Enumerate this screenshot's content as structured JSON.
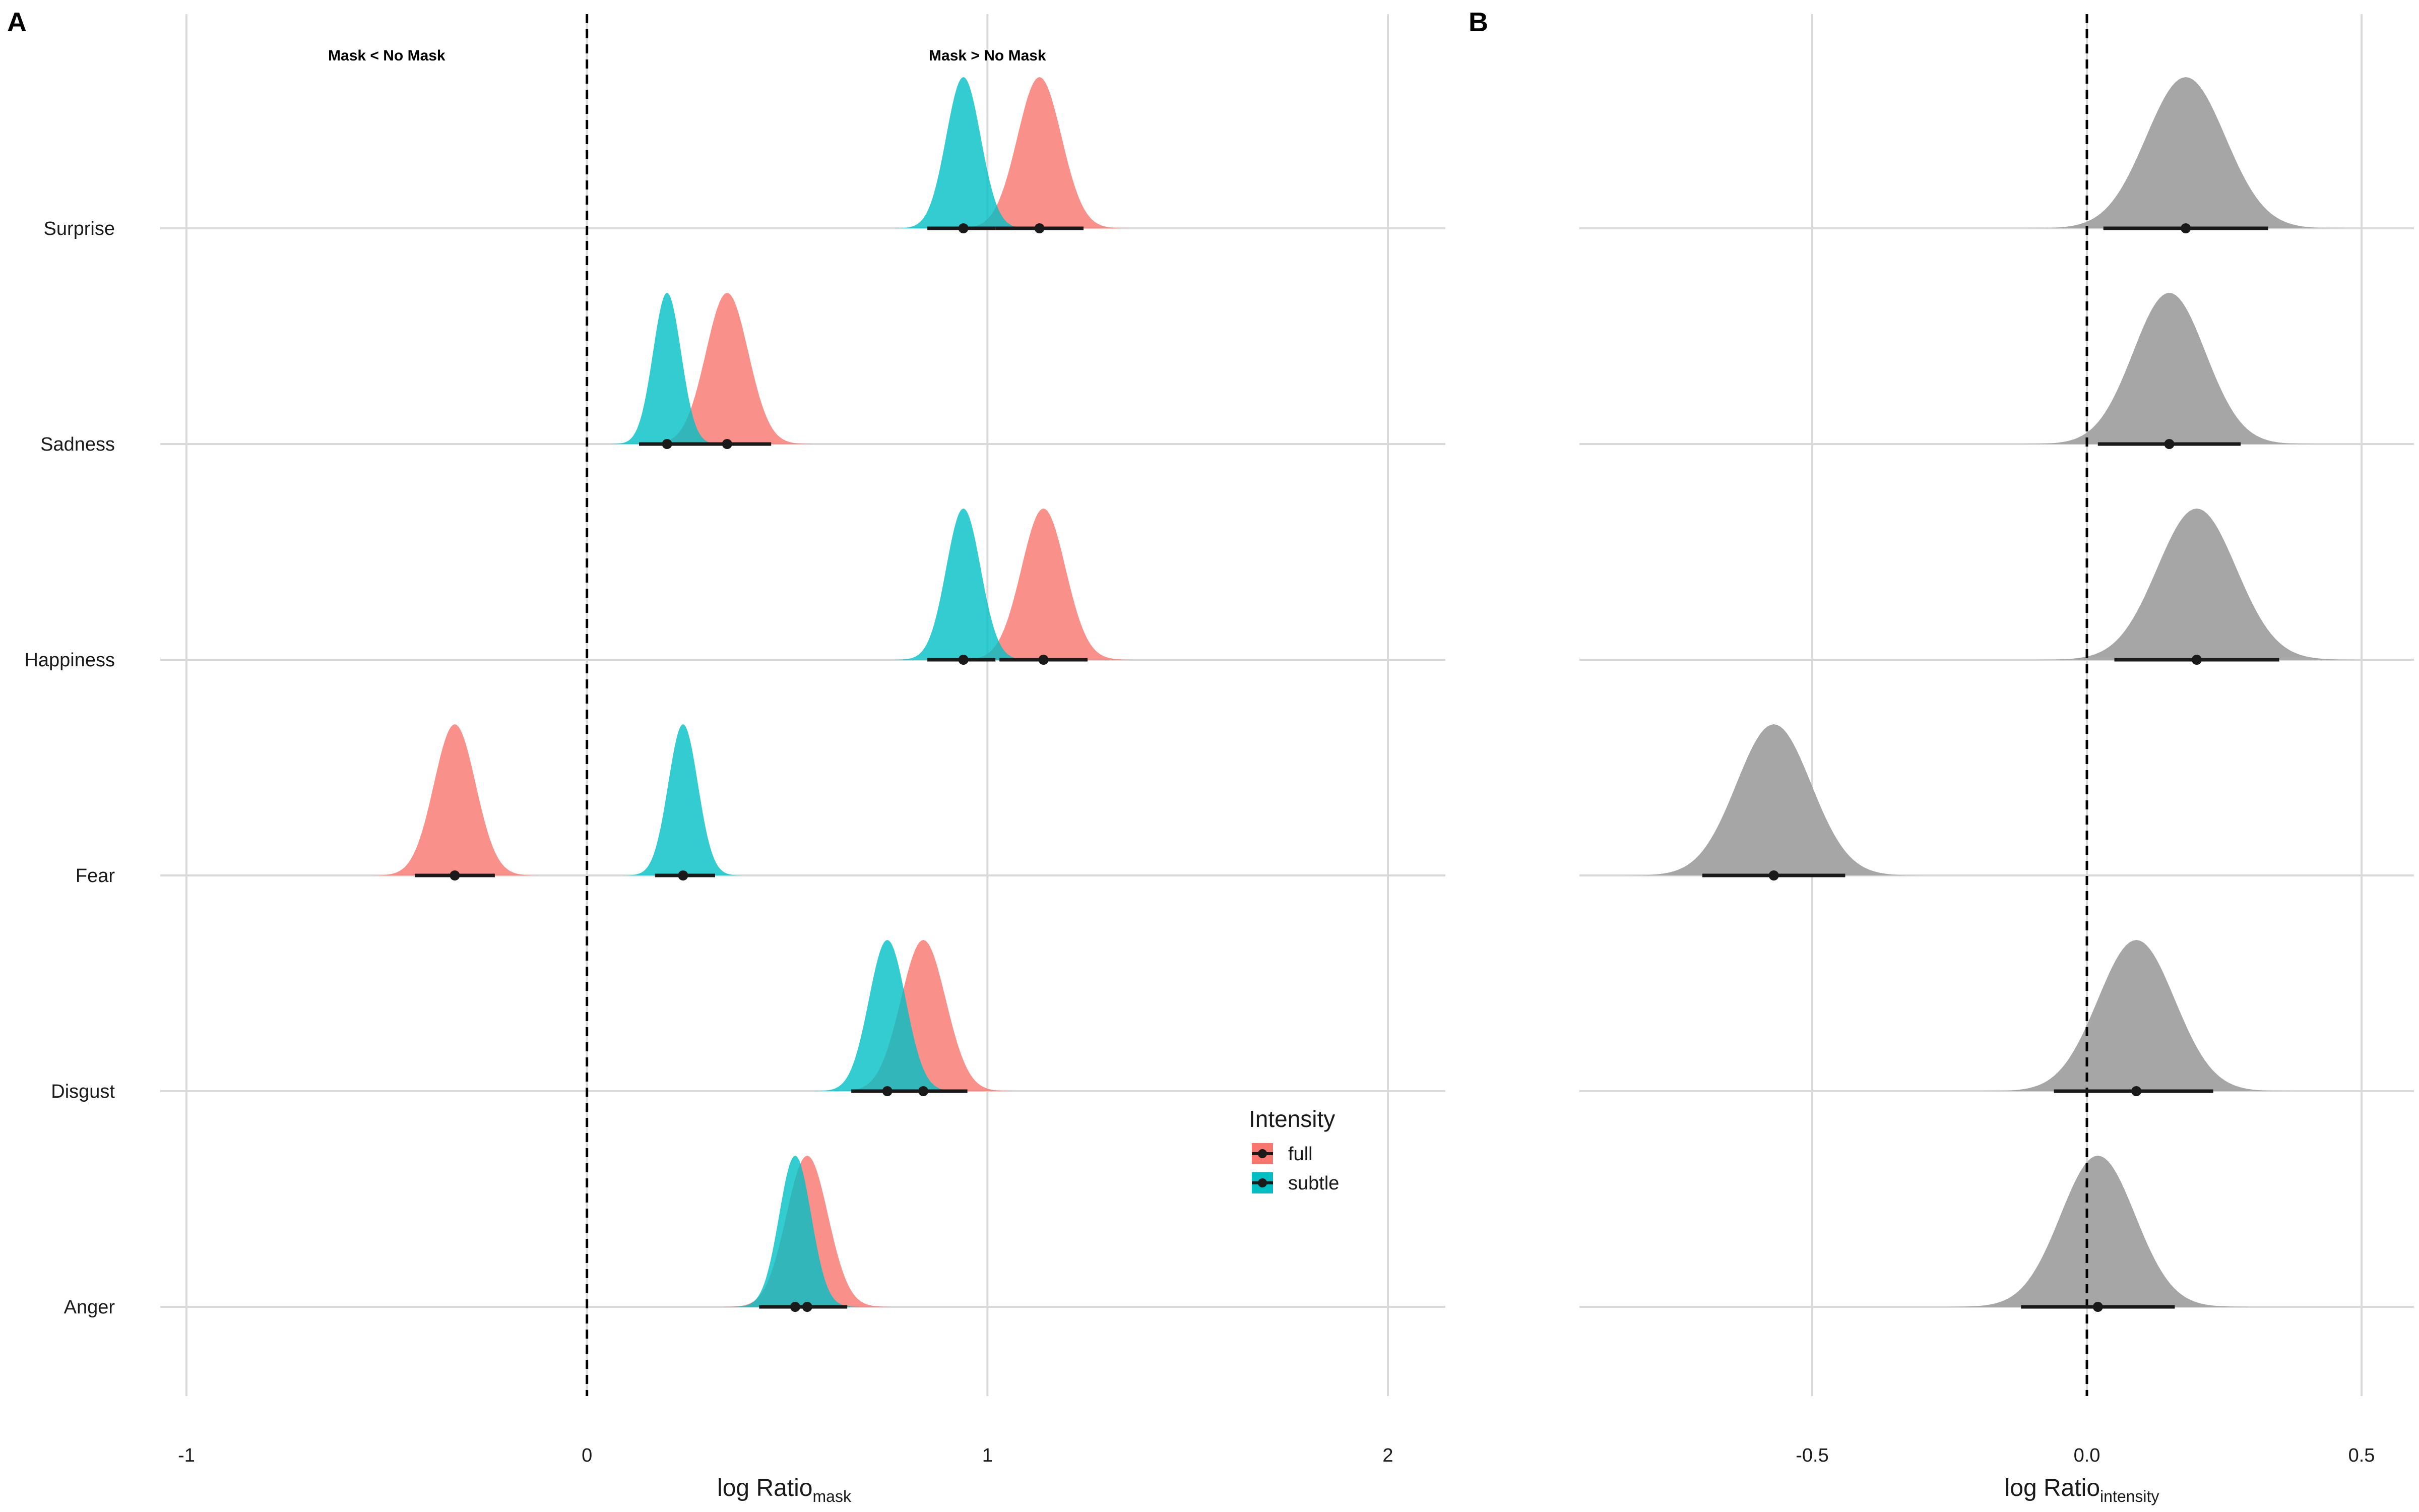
{
  "chart_data": [
    {
      "panel_tag": "A",
      "type": "area",
      "kind": "posterior density ridgeline with point estimate and interval",
      "categories": [
        "Anger",
        "Disgust",
        "Fear",
        "Happiness",
        "Sadness",
        "Surprise"
      ],
      "xlabel_main": "log Ratio",
      "xlabel_sub": "mask",
      "xlim": [
        -1,
        2.1
      ],
      "xticks": [
        -1,
        0,
        1,
        2
      ],
      "tick_labels": [
        "-1",
        "0",
        "1",
        "2"
      ],
      "reference_line_x": 0,
      "annotations": [
        {
          "text": "Mask < No Mask",
          "x": -0.5
        },
        {
          "text": "Mask > No Mask",
          "x": 1.0
        }
      ],
      "legend": {
        "title": "Intensity",
        "entries": [
          "full",
          "subtle"
        ],
        "placement": "right"
      },
      "series": [
        {
          "name": "full",
          "color": "#F8766D",
          "points": [
            {
              "category": "Anger",
              "estimate": 0.55,
              "low": 0.43,
              "high": 0.65,
              "sd": 0.052
            },
            {
              "category": "Disgust",
              "estimate": 0.84,
              "low": 0.72,
              "high": 0.95,
              "sd": 0.056
            },
            {
              "category": "Fear",
              "estimate": -0.33,
              "low": -0.43,
              "high": -0.23,
              "sd": 0.052
            },
            {
              "category": "Happiness",
              "estimate": 1.14,
              "low": 1.03,
              "high": 1.25,
              "sd": 0.055
            },
            {
              "category": "Sadness",
              "estimate": 0.35,
              "low": 0.24,
              "high": 0.46,
              "sd": 0.053
            },
            {
              "category": "Surprise",
              "estimate": 1.13,
              "low": 1.02,
              "high": 1.24,
              "sd": 0.055
            }
          ]
        },
        {
          "name": "subtle",
          "color": "#00BFC4",
          "points": [
            {
              "category": "Anger",
              "estimate": 0.52,
              "low": 0.44,
              "high": 0.6,
              "sd": 0.04
            },
            {
              "category": "Disgust",
              "estimate": 0.75,
              "low": 0.66,
              "high": 0.84,
              "sd": 0.046
            },
            {
              "category": "Fear",
              "estimate": 0.24,
              "low": 0.17,
              "high": 0.32,
              "sd": 0.037
            },
            {
              "category": "Happiness",
              "estimate": 0.94,
              "low": 0.85,
              "high": 1.02,
              "sd": 0.043
            },
            {
              "category": "Sadness",
              "estimate": 0.2,
              "low": 0.13,
              "high": 0.27,
              "sd": 0.035
            },
            {
              "category": "Surprise",
              "estimate": 0.94,
              "low": 0.85,
              "high": 1.02,
              "sd": 0.043
            }
          ]
        }
      ]
    },
    {
      "panel_tag": "B",
      "type": "area",
      "kind": "posterior density ridgeline with point estimate and interval",
      "categories": [
        "Anger",
        "Disgust",
        "Fear",
        "Happiness",
        "Sadness",
        "Surprise"
      ],
      "xlabel_main": "log Ratio",
      "xlabel_sub": "intensity",
      "xlim": [
        -0.92,
        0.6
      ],
      "xticks": [
        -0.5,
        0,
        0.5
      ],
      "tick_labels": [
        "-0.5",
        "0.0",
        "0.5"
      ],
      "reference_line_x": 0,
      "series": [
        {
          "name": "",
          "color": "#A6A6A6",
          "points": [
            {
              "category": "Anger",
              "estimate": 0.02,
              "low": -0.12,
              "high": 0.16,
              "sd": 0.068
            },
            {
              "category": "Disgust",
              "estimate": 0.09,
              "low": -0.06,
              "high": 0.23,
              "sd": 0.07
            },
            {
              "category": "Fear",
              "estimate": -0.57,
              "low": -0.7,
              "high": -0.44,
              "sd": 0.068
            },
            {
              "category": "Happiness",
              "estimate": 0.2,
              "low": 0.05,
              "high": 0.35,
              "sd": 0.072
            },
            {
              "category": "Sadness",
              "estimate": 0.15,
              "low": 0.02,
              "high": 0.28,
              "sd": 0.066
            },
            {
              "category": "Surprise",
              "estimate": 0.18,
              "low": 0.03,
              "high": 0.33,
              "sd": 0.072
            }
          ]
        }
      ]
    }
  ]
}
